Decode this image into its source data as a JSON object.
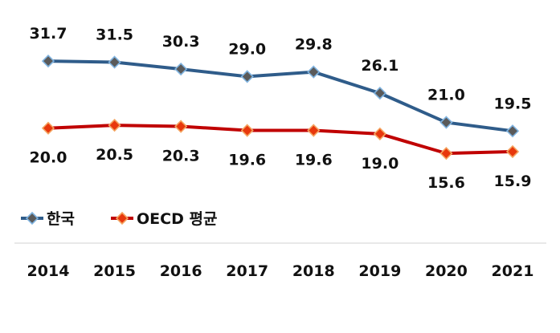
{
  "chart_data": {
    "type": "line",
    "x": [
      "2014",
      "2015",
      "2016",
      "2017",
      "2018",
      "2019",
      "2020",
      "2021"
    ],
    "series": [
      {
        "name": "한국",
        "values": [
          31.7,
          31.5,
          30.3,
          29.0,
          29.8,
          26.1,
          21.0,
          19.5
        ],
        "labels": [
          "31.7",
          "31.5",
          "30.3",
          "29.0",
          "29.8",
          "26.1",
          "21.0",
          "19.5"
        ],
        "line_color": "#2F5C8A",
        "marker_fill": "#5A5A5A",
        "marker_stroke": "#7FB3E0"
      },
      {
        "name": "OECD 평균",
        "values": [
          20.0,
          20.5,
          20.3,
          19.6,
          19.6,
          19.0,
          15.6,
          15.9
        ],
        "labels": [
          "20.0",
          "20.5",
          "20.3",
          "19.6",
          "19.6",
          "19.0",
          "15.6",
          "15.9"
        ],
        "line_color": "#C00000",
        "marker_fill": "#E8380D",
        "marker_stroke": "#F4A460"
      }
    ],
    "grid": false,
    "legend": "bottom-left"
  }
}
